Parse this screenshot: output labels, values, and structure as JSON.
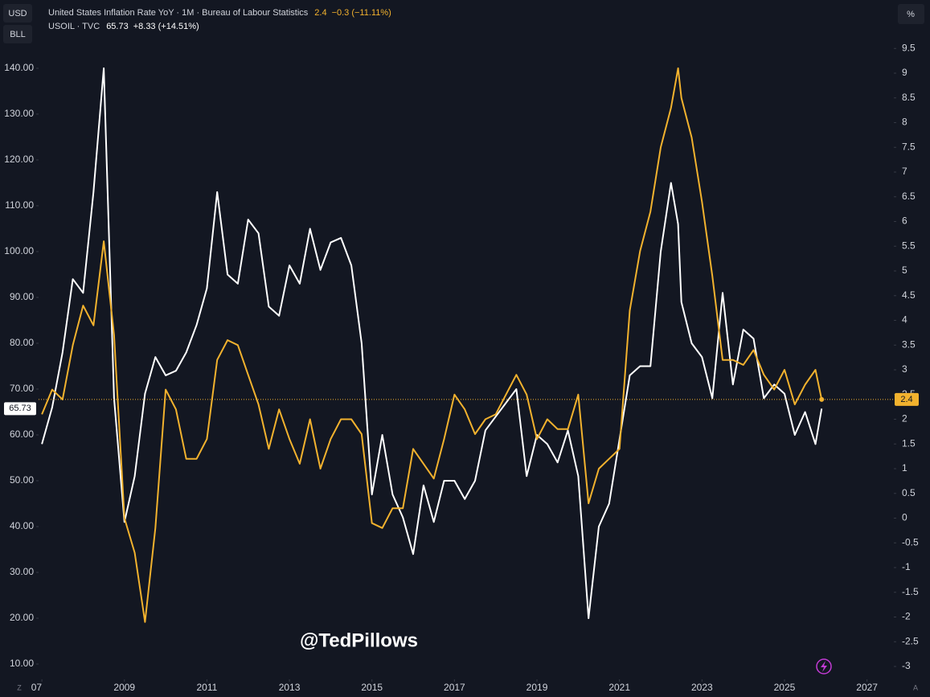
{
  "chart_data": {
    "type": "line",
    "y_unit": "USD",
    "y_sub": "BLL",
    "y2_unit": "%",
    "watermark": "@TedPillows",
    "corner_left": "Z",
    "corner_right": "A",
    "x": [
      2007,
      2007.25,
      2007.5,
      2007.75,
      2008,
      2008.25,
      2008.5,
      2008.75,
      2009,
      2009.25,
      2009.5,
      2009.75,
      2010,
      2010.25,
      2010.5,
      2010.75,
      2011,
      2011.25,
      2011.5,
      2011.75,
      2012,
      2012.25,
      2012.5,
      2012.75,
      2013,
      2013.25,
      2013.5,
      2013.75,
      2014,
      2014.25,
      2014.5,
      2014.75,
      2015,
      2015.25,
      2015.5,
      2015.75,
      2016,
      2016.25,
      2016.5,
      2016.75,
      2017,
      2017.25,
      2017.5,
      2017.75,
      2018,
      2018.25,
      2018.5,
      2018.75,
      2019,
      2019.25,
      2019.5,
      2019.75,
      2020,
      2020.25,
      2020.5,
      2020.75,
      2021,
      2021.25,
      2021.5,
      2021.75,
      2022,
      2022.25,
      2022.42,
      2022.5,
      2022.75,
      2023,
      2023.25,
      2023.5,
      2023.75,
      2024,
      2024.25,
      2024.5,
      2024.75,
      2025,
      2025.25,
      2025.5,
      2025.75,
      2025.9
    ],
    "series": [
      {
        "name": "USOIL · TVC",
        "change": "+8.33 (+14.51%)",
        "color": "#ffffff",
        "values": [
          58,
          66,
          78,
          94,
          91,
          113,
          140,
          68,
          41,
          51,
          69,
          77,
          73,
          74,
          78,
          84,
          92,
          113,
          95,
          93,
          107,
          104,
          88,
          86,
          97,
          93,
          105,
          96,
          102,
          103,
          97,
          80,
          47,
          60,
          47,
          42,
          34,
          49,
          41,
          50,
          50,
          46,
          50,
          61,
          64,
          67,
          70,
          51,
          60,
          58,
          54,
          61,
          51,
          20,
          40,
          45,
          59,
          73,
          75,
          75,
          100,
          115,
          106,
          89,
          80,
          77,
          68,
          91,
          71,
          83,
          81,
          68,
          71,
          69,
          60,
          65,
          58,
          65.73
        ]
      },
      {
        "name": "United States Inflation Rate YoY · 1M · Bureau of Labour Statistics",
        "change": "−0.3 (−11.11%)",
        "color": "#f2b22e",
        "axis": "y2",
        "values": [
          2.1,
          2.6,
          2.4,
          3.5,
          4.3,
          3.9,
          5.6,
          3.7,
          0.0,
          -0.7,
          -2.1,
          -0.2,
          2.6,
          2.2,
          1.2,
          1.2,
          1.6,
          3.2,
          3.6,
          3.5,
          2.9,
          2.3,
          1.4,
          2.2,
          1.6,
          1.1,
          2.0,
          1.0,
          1.6,
          2.0,
          2.0,
          1.7,
          -0.1,
          -0.2,
          0.2,
          0.2,
          1.4,
          1.1,
          0.8,
          1.6,
          2.5,
          2.2,
          1.7,
          2.0,
          2.1,
          2.5,
          2.9,
          2.5,
          1.6,
          2.0,
          1.8,
          1.8,
          2.5,
          0.3,
          1.0,
          1.2,
          1.4,
          4.2,
          5.4,
          6.2,
          7.5,
          8.3,
          9.1,
          8.5,
          7.7,
          6.4,
          4.9,
          3.2,
          3.2,
          3.1,
          3.4,
          2.9,
          2.6,
          3.0,
          2.3,
          2.7,
          3.0,
          2.4
        ]
      }
    ],
    "xlim": [
      2006.92,
      2027.65
    ],
    "xticks": [
      {
        "value": 2007,
        "label": "07"
      },
      2009,
      2011,
      2013,
      2015,
      2017,
      2019,
      2021,
      2023,
      2025,
      2027
    ],
    "ylim": [
      6.67,
      154.9
    ],
    "yticks": [
      {
        "value": 10,
        "label": "10.00"
      },
      {
        "value": 20,
        "label": "20.00"
      },
      {
        "value": 30,
        "label": "30.00"
      },
      {
        "value": 40,
        "label": "40.00"
      },
      {
        "value": 50,
        "label": "50.00"
      },
      {
        "value": 60,
        "label": "60.00"
      },
      {
        "value": 70,
        "label": "70.00"
      },
      {
        "value": 80,
        "label": "80.00"
      },
      {
        "value": 90,
        "label": "90.00"
      },
      {
        "value": 100,
        "label": "100.00"
      },
      {
        "value": 110,
        "label": "110.00"
      },
      {
        "value": 120,
        "label": "120.00"
      },
      {
        "value": 130,
        "label": "130.00"
      },
      {
        "value": 140,
        "label": "140.00"
      }
    ],
    "y2lim": [
      -3.26,
      10.48
    ],
    "y2ticks": [
      -3,
      -2.5,
      -2,
      -1.5,
      -1,
      -0.5,
      0,
      0.5,
      1,
      1.5,
      2,
      2.5,
      3,
      3.5,
      4,
      4.5,
      5,
      5.5,
      6,
      6.5,
      7,
      7.5,
      8,
      8.5,
      9,
      9.5
    ]
  }
}
